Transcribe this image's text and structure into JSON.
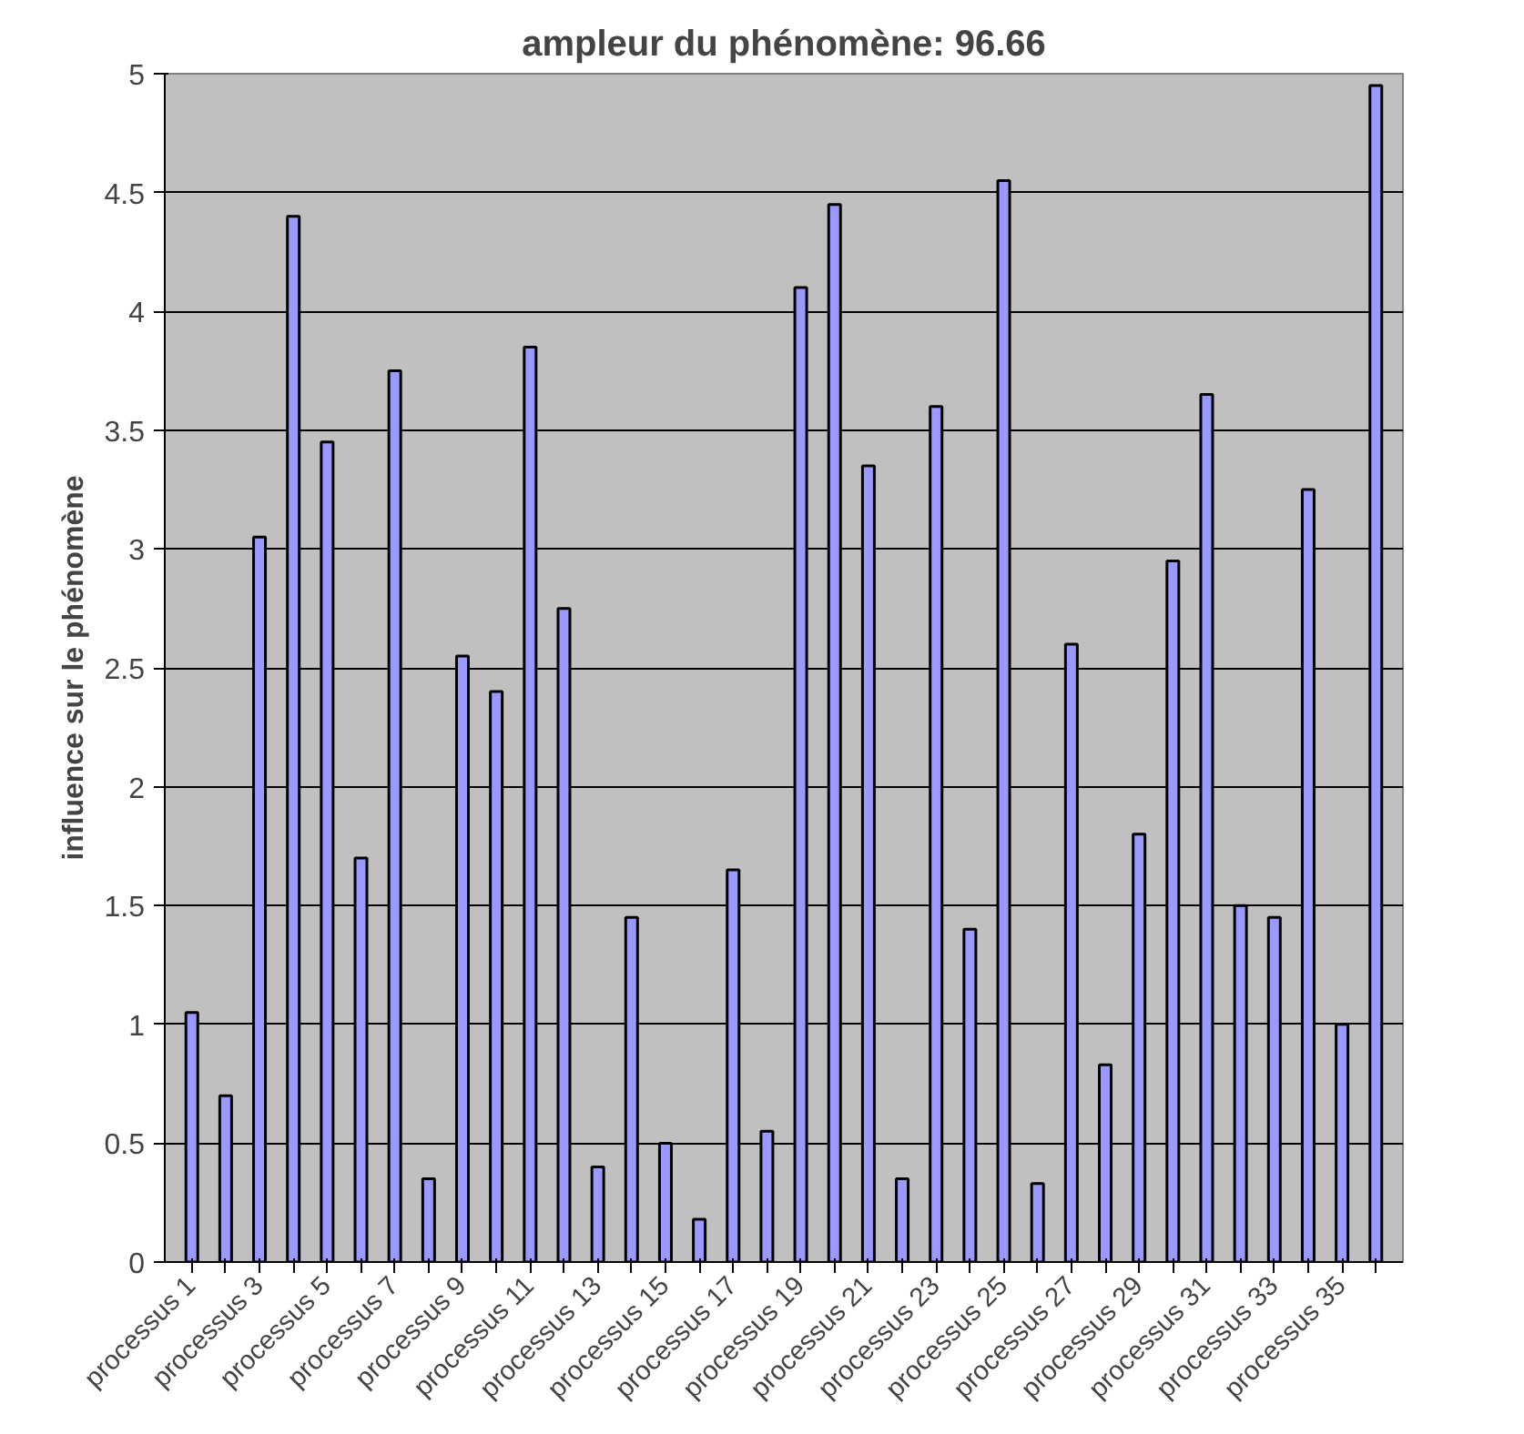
{
  "chart_data": {
    "type": "bar",
    "title": "ampleur du phénomène: 96.66",
    "ylabel": "influence sur le phénomène",
    "categories": [
      "processus 1",
      null,
      "processus 3",
      null,
      "processus 5",
      null,
      "processus 7",
      null,
      "processus 9",
      null,
      "processus 11",
      null,
      "processus 13",
      null,
      "processus 15",
      null,
      "processus 17",
      null,
      "processus 19",
      null,
      "processus 21",
      null,
      "processus 23",
      null,
      "processus 25",
      null,
      "processus 27",
      null,
      "processus 29",
      null,
      "processus 31",
      null,
      "processus 33",
      null,
      "processus 35",
      null
    ],
    "values": [
      1.05,
      0.7,
      3.05,
      4.4,
      3.45,
      1.7,
      3.75,
      0.35,
      2.55,
      2.4,
      3.85,
      2.75,
      0.4,
      1.45,
      0.5,
      0.18,
      1.65,
      0.55,
      4.1,
      4.45,
      3.35,
      0.35,
      3.6,
      1.4,
      4.55,
      0.33,
      2.6,
      0.83,
      1.8,
      2.95,
      3.65,
      1.5,
      1.45,
      3.25,
      1.0,
      4.95
    ],
    "color": "#9999ff",
    "ylim": [
      0,
      5
    ],
    "yticks": [
      0,
      0.5,
      1,
      1.5,
      2,
      2.5,
      3,
      3.5,
      4,
      4.5,
      5
    ],
    "grid": "y"
  }
}
